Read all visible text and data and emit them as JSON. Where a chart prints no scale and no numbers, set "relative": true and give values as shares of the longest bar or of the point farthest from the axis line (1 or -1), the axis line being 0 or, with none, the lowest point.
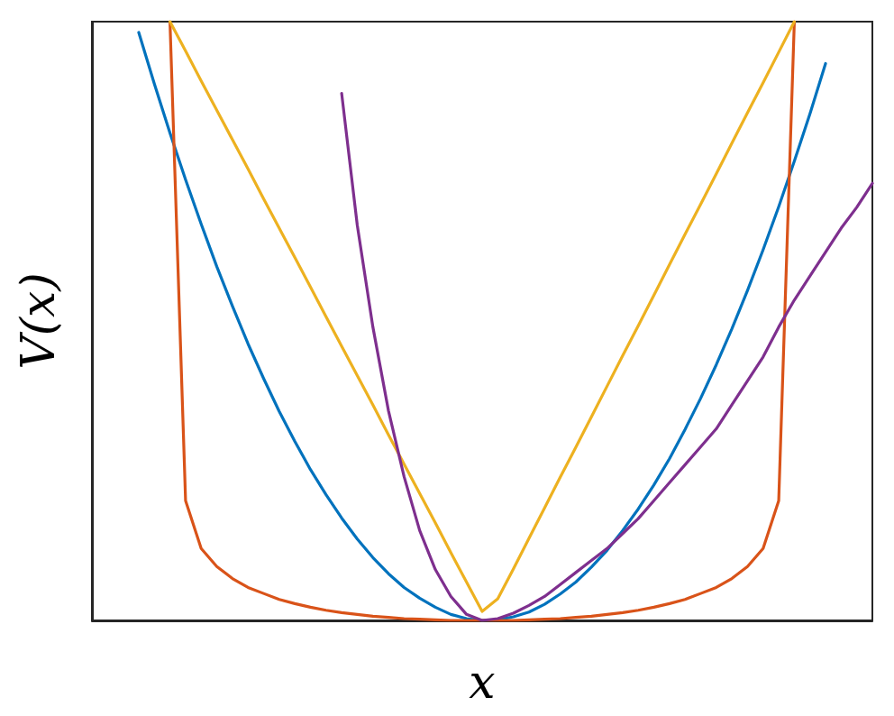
{
  "chart_data": {
    "type": "line",
    "xlabel": "x",
    "ylabel": "V(x)",
    "relative": true,
    "line_style": "solid",
    "categories": [
      null,
      null,
      null,
      null,
      null,
      null,
      null,
      null,
      null,
      null,
      null,
      null,
      null,
      null,
      null,
      null,
      null,
      null,
      null,
      null,
      null,
      null,
      null,
      null,
      null,
      null,
      null,
      null,
      null,
      null,
      null,
      null,
      null,
      null,
      null,
      null,
      null,
      null,
      null,
      null,
      null,
      null,
      null,
      null,
      null,
      null,
      null,
      null,
      null,
      null,
      null
    ],
    "series": [
      {
        "color": "#0072bd",
        "values": [
          null,
          null,
          null,
          0.982,
          0.896,
          0.814,
          0.736,
          0.662,
          0.591,
          0.525,
          0.462,
          0.404,
          0.349,
          0.299,
          0.252,
          0.21,
          0.171,
          0.136,
          0.105,
          0.078,
          0.055,
          0.037,
          0.022,
          0.01,
          0.003,
          0,
          0.001,
          0.006,
          0.014,
          0.027,
          0.044,
          0.064,
          0.089,
          0.117,
          0.15,
          0.186,
          0.226,
          0.27,
          0.319,
          0.371,
          0.427,
          0.487,
          0.551,
          0.619,
          0.691,
          0.767,
          0.846,
          0.93,
          null,
          null,
          null
        ]
      },
      {
        "color": "#d95319",
        "values": [
          null,
          null,
          null,
          null,
          null,
          1,
          0.2,
          0.12,
          0.09,
          0.07,
          0.055,
          0.045,
          0.035,
          0.028,
          0.022,
          0.017,
          0.013,
          0.01,
          0.007,
          0.005,
          0.003,
          0.002,
          0.001,
          0,
          0,
          0,
          0,
          0,
          0.001,
          0.002,
          0.003,
          0.005,
          0.007,
          0.01,
          0.013,
          0.017,
          0.022,
          0.028,
          0.035,
          0.045,
          0.055,
          0.07,
          0.09,
          0.12,
          0.2,
          1,
          null,
          null,
          null,
          null,
          null
        ]
      },
      {
        "color": "#edb120",
        "values": [
          null,
          null,
          null,
          null,
          null,
          1,
          0.951,
          0.901,
          0.852,
          0.803,
          0.754,
          0.704,
          0.655,
          0.606,
          0.557,
          0.507,
          0.458,
          0.409,
          0.36,
          0.31,
          0.261,
          0.212,
          0.163,
          0.113,
          0.064,
          0.015,
          0.036,
          0.086,
          0.137,
          0.188,
          0.239,
          0.289,
          0.34,
          0.391,
          0.442,
          0.492,
          0.543,
          0.594,
          0.645,
          0.695,
          0.746,
          0.797,
          0.848,
          0.898,
          0.949,
          1,
          null,
          null,
          null,
          null,
          null
        ]
      },
      {
        "color": "#7e2f8e",
        "values": [
          null,
          null,
          null,
          null,
          null,
          null,
          null,
          null,
          null,
          null,
          null,
          null,
          null,
          null,
          null,
          null,
          0.88,
          0.66,
          0.49,
          0.35,
          0.24,
          0.15,
          0.085,
          0.04,
          0.01,
          0,
          0.003,
          0.012,
          0.025,
          0.04,
          0.06,
          0.08,
          0.1,
          0.12,
          0.145,
          0.17,
          0.2,
          0.23,
          0.26,
          0.29,
          0.32,
          0.36,
          0.4,
          0.44,
          0.49,
          0.535,
          0.575,
          0.615,
          0.655,
          0.69,
          0.73
        ]
      }
    ]
  }
}
